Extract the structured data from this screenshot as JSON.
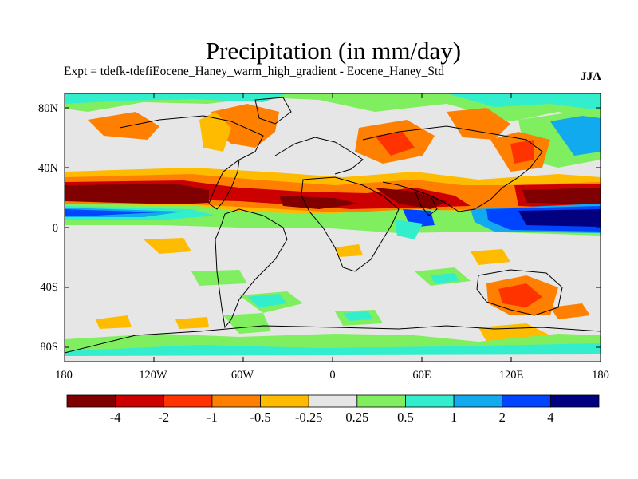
{
  "title": "Precipitation (in mm/day)",
  "subtitle": "Expt = tdefk-tdefiEocene_Haney_warm_high_gradient - Eocene_Haney_Std",
  "season": "JJA",
  "lat_labels": [
    "80N",
    "40N",
    "0",
    "40S",
    "80S"
  ],
  "lon_labels": [
    "180",
    "120W",
    "60W",
    "0",
    "60E",
    "120E",
    "180"
  ],
  "colorbar": {
    "labels": [
      "-4",
      "-2",
      "-1",
      "-0.5",
      "-0.25",
      "0.25",
      "0.5",
      "1",
      "2",
      "4"
    ],
    "colors": [
      "#800000",
      "#cc0000",
      "#ff3300",
      "#ff8000",
      "#ffbb00",
      "#e6e6e6",
      "#7fef5f",
      "#33eecc",
      "#11aaee",
      "#0044ff",
      "#000080"
    ]
  }
}
